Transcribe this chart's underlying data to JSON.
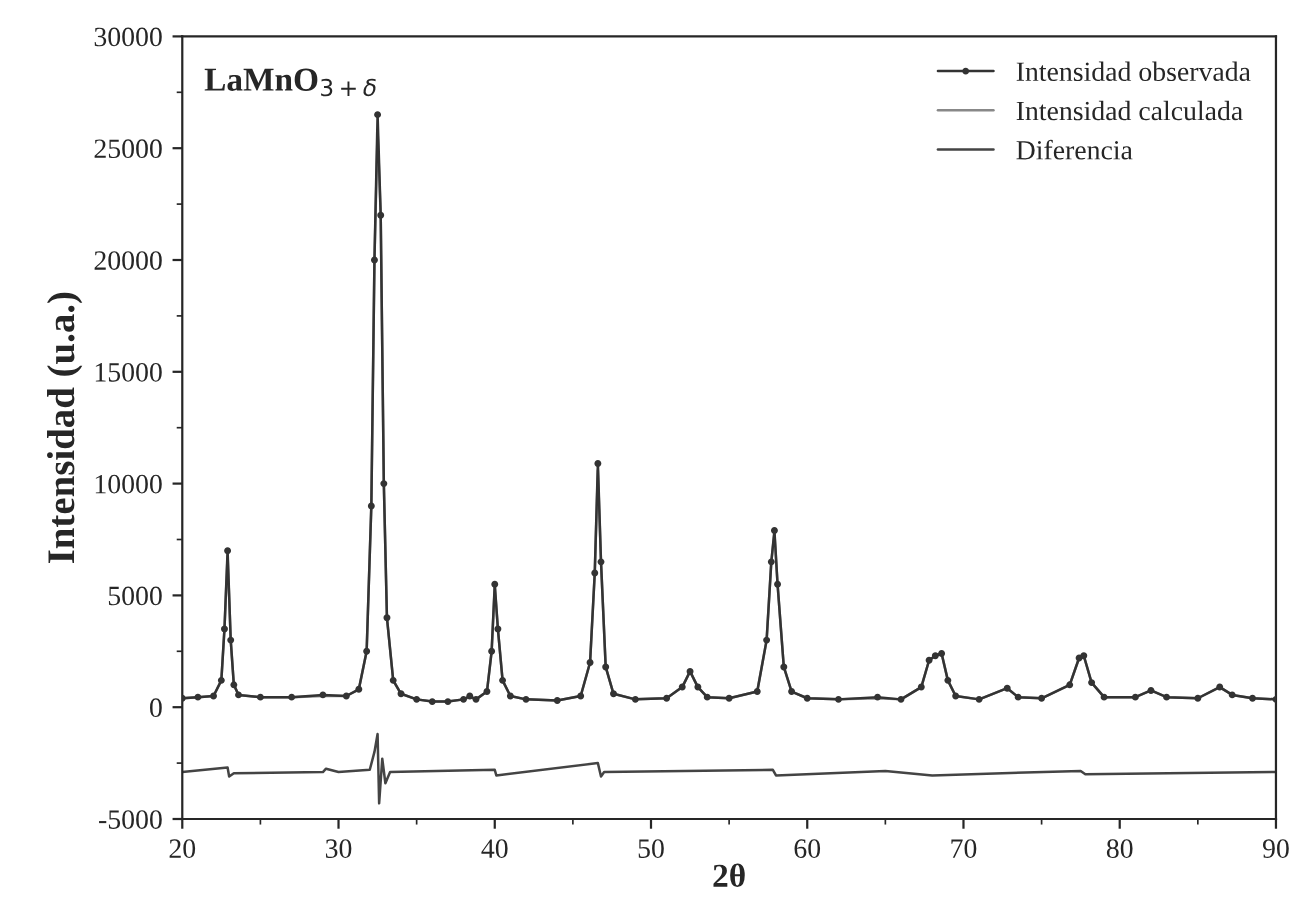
{
  "chart_data": {
    "type": "line",
    "xlabel": "2θ",
    "ylabel": "Intensidad (u.a.)",
    "annotations": [
      "LaMnO$_{3+δ}$"
    ],
    "xlim": [
      20,
      90
    ],
    "xticks": [
      20,
      30,
      40,
      50,
      60,
      70,
      80,
      90
    ],
    "ylim": [
      -5000,
      30000
    ],
    "yticks": [
      -5000,
      0,
      5000,
      10000,
      15000,
      20000,
      25000,
      30000
    ],
    "grid": false,
    "legend": "top right",
    "series": [
      {
        "name": "Intensidad observada",
        "color": "#333333",
        "marker": "circle",
        "x": [
          20,
          21,
          22,
          22.5,
          22.7,
          22.9,
          23.1,
          23.3,
          23.6,
          25,
          27,
          29,
          30.5,
          31.3,
          31.8,
          32.1,
          32.3,
          32.5,
          32.7,
          32.9,
          33.1,
          33.5,
          34,
          35,
          36,
          37,
          38,
          38.4,
          38.8,
          39.5,
          39.8,
          40.0,
          40.2,
          40.5,
          41,
          42,
          44,
          45.5,
          46.1,
          46.4,
          46.6,
          46.8,
          47.1,
          47.6,
          49,
          51,
          52,
          52.5,
          53,
          53.6,
          55,
          56.8,
          57.4,
          57.7,
          57.9,
          58.1,
          58.5,
          59,
          60,
          62,
          64.5,
          66,
          67.3,
          67.8,
          68.2,
          68.6,
          69,
          69.5,
          71,
          72.8,
          73.5,
          75,
          76.8,
          77.4,
          77.7,
          78.2,
          79,
          81,
          82,
          83,
          85,
          86.4,
          87.2,
          88.5,
          90
        ],
        "values": [
          400,
          450,
          500,
          1200,
          3500,
          7000,
          3000,
          1000,
          550,
          450,
          450,
          550,
          500,
          800,
          2500,
          9000,
          20000,
          26500,
          22000,
          10000,
          4000,
          1200,
          600,
          350,
          250,
          250,
          350,
          500,
          350,
          700,
          2500,
          5500,
          3500,
          1200,
          500,
          350,
          300,
          500,
          2000,
          6000,
          10900,
          6500,
          1800,
          600,
          350,
          400,
          900,
          1600,
          900,
          450,
          400,
          700,
          3000,
          6500,
          7900,
          5500,
          1800,
          700,
          400,
          350,
          450,
          350,
          900,
          2100,
          2300,
          2400,
          1200,
          500,
          350,
          850,
          450,
          400,
          1000,
          2200,
          2300,
          1100,
          450,
          450,
          750,
          450,
          400,
          900,
          550,
          400,
          350
        ]
      },
      {
        "name": "Intensidad calculada",
        "color": "#888888",
        "marker": "none",
        "x": [
          20,
          21,
          22,
          22.5,
          22.7,
          22.9,
          23.1,
          23.3,
          23.6,
          25,
          27,
          29,
          30.5,
          31.3,
          31.8,
          32.1,
          32.3,
          32.5,
          32.7,
          32.9,
          33.1,
          33.5,
          34,
          35,
          36,
          37,
          38,
          38.4,
          38.8,
          39.5,
          39.8,
          40.0,
          40.2,
          40.5,
          41,
          42,
          44,
          45.5,
          46.1,
          46.4,
          46.6,
          46.8,
          47.1,
          47.6,
          49,
          51,
          52,
          52.5,
          53,
          53.6,
          55,
          56.8,
          57.4,
          57.7,
          57.9,
          58.1,
          58.5,
          59,
          60,
          62,
          64.5,
          66,
          67.3,
          67.8,
          68.2,
          68.6,
          69,
          69.5,
          71,
          72.8,
          73.5,
          75,
          76.8,
          77.4,
          77.7,
          78.2,
          79,
          81,
          82,
          83,
          85,
          86.4,
          87.2,
          88.5,
          90
        ],
        "values": [
          400,
          450,
          500,
          1200,
          3500,
          6800,
          3000,
          1000,
          550,
          450,
          450,
          500,
          500,
          800,
          2500,
          9000,
          20000,
          25800,
          22000,
          10000,
          4000,
          1200,
          600,
          350,
          250,
          250,
          350,
          450,
          350,
          700,
          2500,
          5400,
          3500,
          1200,
          500,
          350,
          300,
          500,
          2000,
          6000,
          10600,
          6500,
          1800,
          600,
          350,
          400,
          900,
          1600,
          900,
          450,
          400,
          700,
          3000,
          6500,
          7800,
          5500,
          1800,
          700,
          400,
          350,
          400,
          350,
          900,
          2100,
          2300,
          2400,
          1200,
          500,
          350,
          850,
          450,
          400,
          1000,
          2200,
          2300,
          1100,
          450,
          450,
          750,
          450,
          400,
          900,
          550,
          400,
          350
        ]
      },
      {
        "name": "Diferencia",
        "color": "#444444",
        "marker": "none",
        "x": [
          20,
          22.9,
          23,
          23.3,
          29,
          29.2,
          30,
          32.0,
          32.3,
          32.5,
          32.6,
          32.8,
          33.0,
          33.3,
          40,
          40.1,
          46.6,
          46.8,
          47,
          57.8,
          58,
          65,
          68,
          77.5,
          77.8,
          90
        ],
        "values": [
          -2900,
          -2700,
          -3100,
          -2950,
          -2900,
          -2750,
          -2900,
          -2800,
          -2000,
          -1200,
          -4300,
          -2300,
          -3400,
          -2900,
          -2800,
          -3050,
          -2500,
          -3100,
          -2900,
          -2800,
          -3050,
          -2850,
          -3050,
          -2850,
          -3000,
          -2900
        ]
      }
    ]
  }
}
